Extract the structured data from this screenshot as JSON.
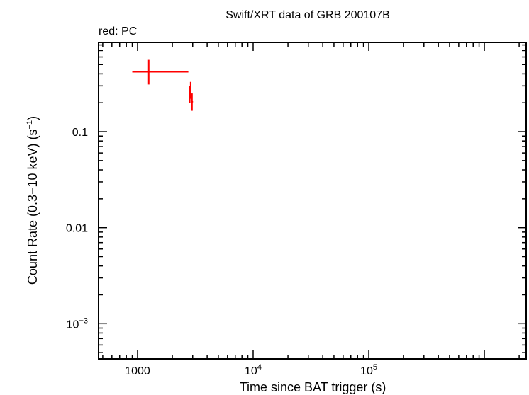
{
  "chart_data": {
    "type": "scatter",
    "title": "Swift/XRT data of GRB 200107B",
    "subtitle": "red: PC",
    "xlabel": "Time since BAT trigger (s)",
    "ylabel": "Count Rate (0.3−10 keV) (s",
    "ylabel_sup": "−1",
    "ylabel_close": ")",
    "xscale": "log",
    "yscale": "log",
    "xlim": [
      460,
      2300000
    ],
    "ylim": [
      0.00043,
      0.85
    ],
    "x_ticks": [
      {
        "value": 1000,
        "base": "1000",
        "sup": ""
      },
      {
        "value": 10000,
        "base": "10",
        "sup": "4"
      },
      {
        "value": 100000,
        "base": "10",
        "sup": "5"
      }
    ],
    "y_ticks": [
      {
        "value": 0.1,
        "base": "0.1",
        "sup": ""
      },
      {
        "value": 0.01,
        "base": "0.01",
        "sup": ""
      },
      {
        "value": 0.001,
        "base": "10",
        "sup": "−3"
      }
    ],
    "series": [
      {
        "color": "#ff0000",
        "points": [
          {
            "x": 1250,
            "y": 0.42,
            "xlo": 900,
            "xhi": 2750,
            "ylo": 0.31,
            "yhi": 0.56
          },
          {
            "x": 2830,
            "y": 0.245,
            "xlo": 2790,
            "xhi": 2870,
            "ylo": 0.2,
            "yhi": 0.3
          },
          {
            "x": 2880,
            "y": 0.27,
            "xlo": 2850,
            "xhi": 2920,
            "ylo": 0.22,
            "yhi": 0.33
          },
          {
            "x": 2960,
            "y": 0.205,
            "xlo": 2910,
            "xhi": 3020,
            "ylo": 0.165,
            "yhi": 0.25
          }
        ]
      }
    ]
  }
}
